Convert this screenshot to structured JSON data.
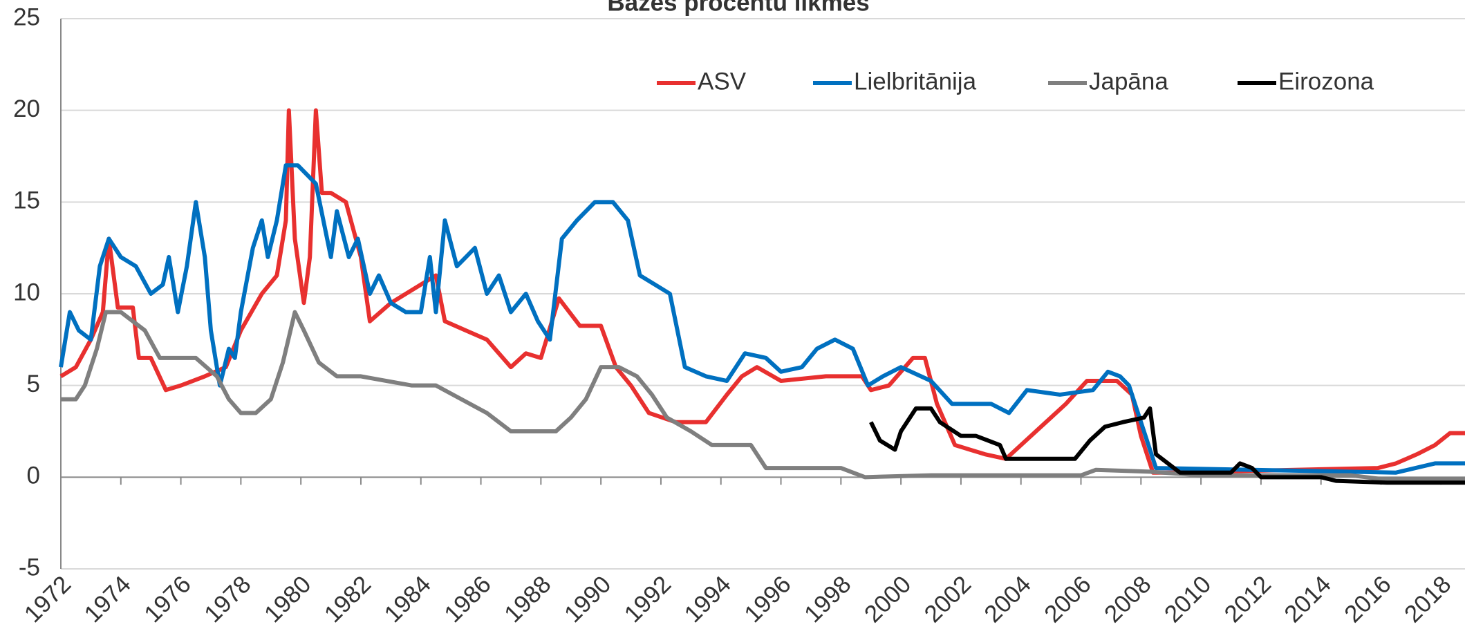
{
  "chart_data": {
    "type": "line",
    "title": "Bāzes procentu likmes",
    "xlim": [
      1972,
      2018.8
    ],
    "xticks": [
      1972,
      1974,
      1976,
      1978,
      1980,
      1982,
      1984,
      1986,
      1988,
      1990,
      1992,
      1994,
      1996,
      1998,
      2000,
      2002,
      2004,
      2006,
      2008,
      2010,
      2012,
      2014,
      2016,
      2018
    ],
    "ylim": [
      -5,
      25
    ],
    "yticks": [
      -5,
      0,
      5,
      10,
      15,
      20,
      25
    ],
    "grid": true,
    "legend": "top",
    "series": [
      {
        "name": "ASV",
        "color": "#e8302f",
        "x": [
          1972,
          1972.5,
          1973,
          1973.4,
          1973.6,
          1973.9,
          1974.4,
          1974.6,
          1975,
          1975.5,
          1976,
          1976.8,
          1977.5,
          1978,
          1978.7,
          1979.2,
          1979.5,
          1979.6,
          1979.8,
          1980.1,
          1980.3,
          1980.5,
          1980.7,
          1981,
          1981.5,
          1982,
          1982.3,
          1983,
          1984,
          1984.5,
          1984.8,
          1985.5,
          1986.2,
          1987,
          1987.5,
          1988,
          1988.6,
          1989.3,
          1990,
          1990.5,
          1991,
          1991.6,
          1992.5,
          1993.5,
          1994.2,
          1994.7,
          1995.2,
          1996,
          1997.5,
          1998.7,
          1999,
          1999.6,
          2000.4,
          2000.8,
          2001.2,
          2001.8,
          2002.8,
          2003.5,
          2004.5,
          2005.5,
          2006.2,
          2007.2,
          2007.7,
          2008,
          2008.4,
          2009,
          2015.9,
          2016.5,
          2017.2,
          2017.8,
          2018.3,
          2018.8
        ],
        "values": [
          5.5,
          6,
          7.5,
          9,
          13,
          9.25,
          9.25,
          6.5,
          6.5,
          4.75,
          5,
          5.5,
          6,
          8,
          10,
          11,
          14,
          20,
          13,
          9.5,
          12,
          20,
          15.5,
          15.5,
          15,
          12,
          8.5,
          9.5,
          10.5,
          11,
          8.5,
          8,
          7.5,
          6,
          6.75,
          6.5,
          9.75,
          8.25,
          8.25,
          6,
          5,
          3.5,
          3,
          3,
          4.5,
          5.5,
          6,
          5.25,
          5.5,
          5.5,
          4.75,
          5,
          6.5,
          6.5,
          4,
          1.75,
          1.25,
          1,
          2.5,
          4,
          5.25,
          5.25,
          4.5,
          2.25,
          0.25,
          0.25,
          0.5,
          0.75,
          1.25,
          1.75,
          2.4,
          2.4
        ]
      },
      {
        "name": "Lielbritānija",
        "color": "#0070c0",
        "x": [
          1972,
          1972.3,
          1972.6,
          1973,
          1973.3,
          1973.6,
          1974,
          1974.5,
          1975,
          1975.4,
          1975.6,
          1975.9,
          1976.2,
          1976.5,
          1976.8,
          1977,
          1977.3,
          1977.6,
          1977.8,
          1978,
          1978.4,
          1978.7,
          1978.9,
          1979.2,
          1979.5,
          1979.9,
          1980.5,
          1981,
          1981.2,
          1981.6,
          1981.9,
          1982.3,
          1982.6,
          1983,
          1983.5,
          1984,
          1984.3,
          1984.5,
          1984.8,
          1985.2,
          1985.8,
          1986.2,
          1986.6,
          1987,
          1987.5,
          1987.9,
          1988.3,
          1988.7,
          1989.2,
          1989.8,
          1990.4,
          1990.9,
          1991.3,
          1991.8,
          1992.3,
          1992.8,
          1993.5,
          1994.2,
          1994.8,
          1995.5,
          1996,
          1996.7,
          1997.2,
          1997.8,
          1998.4,
          1998.9,
          1999.4,
          2000,
          2001,
          2001.7,
          2003,
          2003.6,
          2004.2,
          2005.3,
          2006.4,
          2006.9,
          2007.3,
          2007.6,
          2008.2,
          2008.5,
          2016.5,
          2017.8,
          2018.8
        ],
        "values": [
          6,
          9,
          8,
          7.5,
          11.5,
          13,
          12,
          11.5,
          10,
          10.5,
          12,
          9,
          11.5,
          15,
          12,
          8,
          5,
          7,
          6.5,
          9,
          12.5,
          14,
          12,
          14,
          17,
          17,
          16,
          12,
          14.5,
          12,
          13,
          10,
          11,
          9.5,
          9,
          9,
          12,
          9,
          14,
          11.5,
          12.5,
          10,
          11,
          9,
          10,
          8.5,
          7.5,
          13,
          14,
          15,
          15,
          14,
          11,
          10.5,
          10,
          6,
          5.5,
          5.25,
          6.75,
          6.5,
          5.75,
          6,
          7,
          7.5,
          7,
          5,
          5.5,
          6,
          5.25,
          4,
          4,
          3.5,
          4.75,
          4.5,
          4.75,
          5.75,
          5.5,
          5,
          2,
          0.5,
          0.25,
          0.75,
          0.75
        ]
      },
      {
        "name": "Japāna",
        "color": "#7f7f7f",
        "x": [
          1972,
          1972.5,
          1972.8,
          1973.2,
          1973.5,
          1974,
          1974.8,
          1975.3,
          1975.6,
          1976.5,
          1977.2,
          1977.6,
          1978,
          1978.5,
          1979,
          1979.4,
          1979.8,
          1980.1,
          1980.6,
          1981.2,
          1982,
          1983.7,
          1984.5,
          1986.2,
          1986.6,
          1987,
          1988.5,
          1989,
          1989.5,
          1990,
          1990.6,
          1991.2,
          1991.7,
          1992.2,
          1993,
          1993.7,
          1995,
          1995.5,
          1998,
          1998.8,
          2001,
          2003,
          2006,
          2006.5,
          2008.3,
          2010,
          2015,
          2016,
          2018.8
        ],
        "values": [
          4.25,
          4.25,
          5,
          7,
          9,
          9,
          8,
          6.5,
          6.5,
          6.5,
          5.5,
          4.25,
          3.5,
          3.5,
          4.25,
          6.25,
          9,
          8,
          6.25,
          5.5,
          5.5,
          5,
          5,
          3.5,
          3,
          2.5,
          2.5,
          3.25,
          4.25,
          6,
          6,
          5.5,
          4.5,
          3.25,
          2.5,
          1.75,
          1.75,
          0.5,
          0.5,
          0,
          0.1,
          0.1,
          0.1,
          0.4,
          0.3,
          0.1,
          0.1,
          -0.1,
          -0.1
        ]
      },
      {
        "name": "Eirozona",
        "color": "#000000",
        "x": [
          1999,
          1999.3,
          1999.8,
          2000,
          2000.5,
          2001,
          2001.3,
          2002,
          2002.5,
          2003.3,
          2003.5,
          2005.8,
          2006.3,
          2006.8,
          2007.4,
          2008.1,
          2008.3,
          2008.5,
          2009.3,
          2011,
          2011.3,
          2011.7,
          2012,
          2014,
          2014.5,
          2016.2,
          2018.8
        ],
        "values": [
          3,
          2,
          1.5,
          2.5,
          3.75,
          3.75,
          3,
          2.25,
          2.25,
          1.75,
          1,
          1,
          2,
          2.75,
          3,
          3.25,
          3.75,
          1.25,
          0.25,
          0.25,
          0.75,
          0.5,
          0,
          0,
          -0.2,
          -0.3,
          -0.3
        ]
      }
    ]
  }
}
